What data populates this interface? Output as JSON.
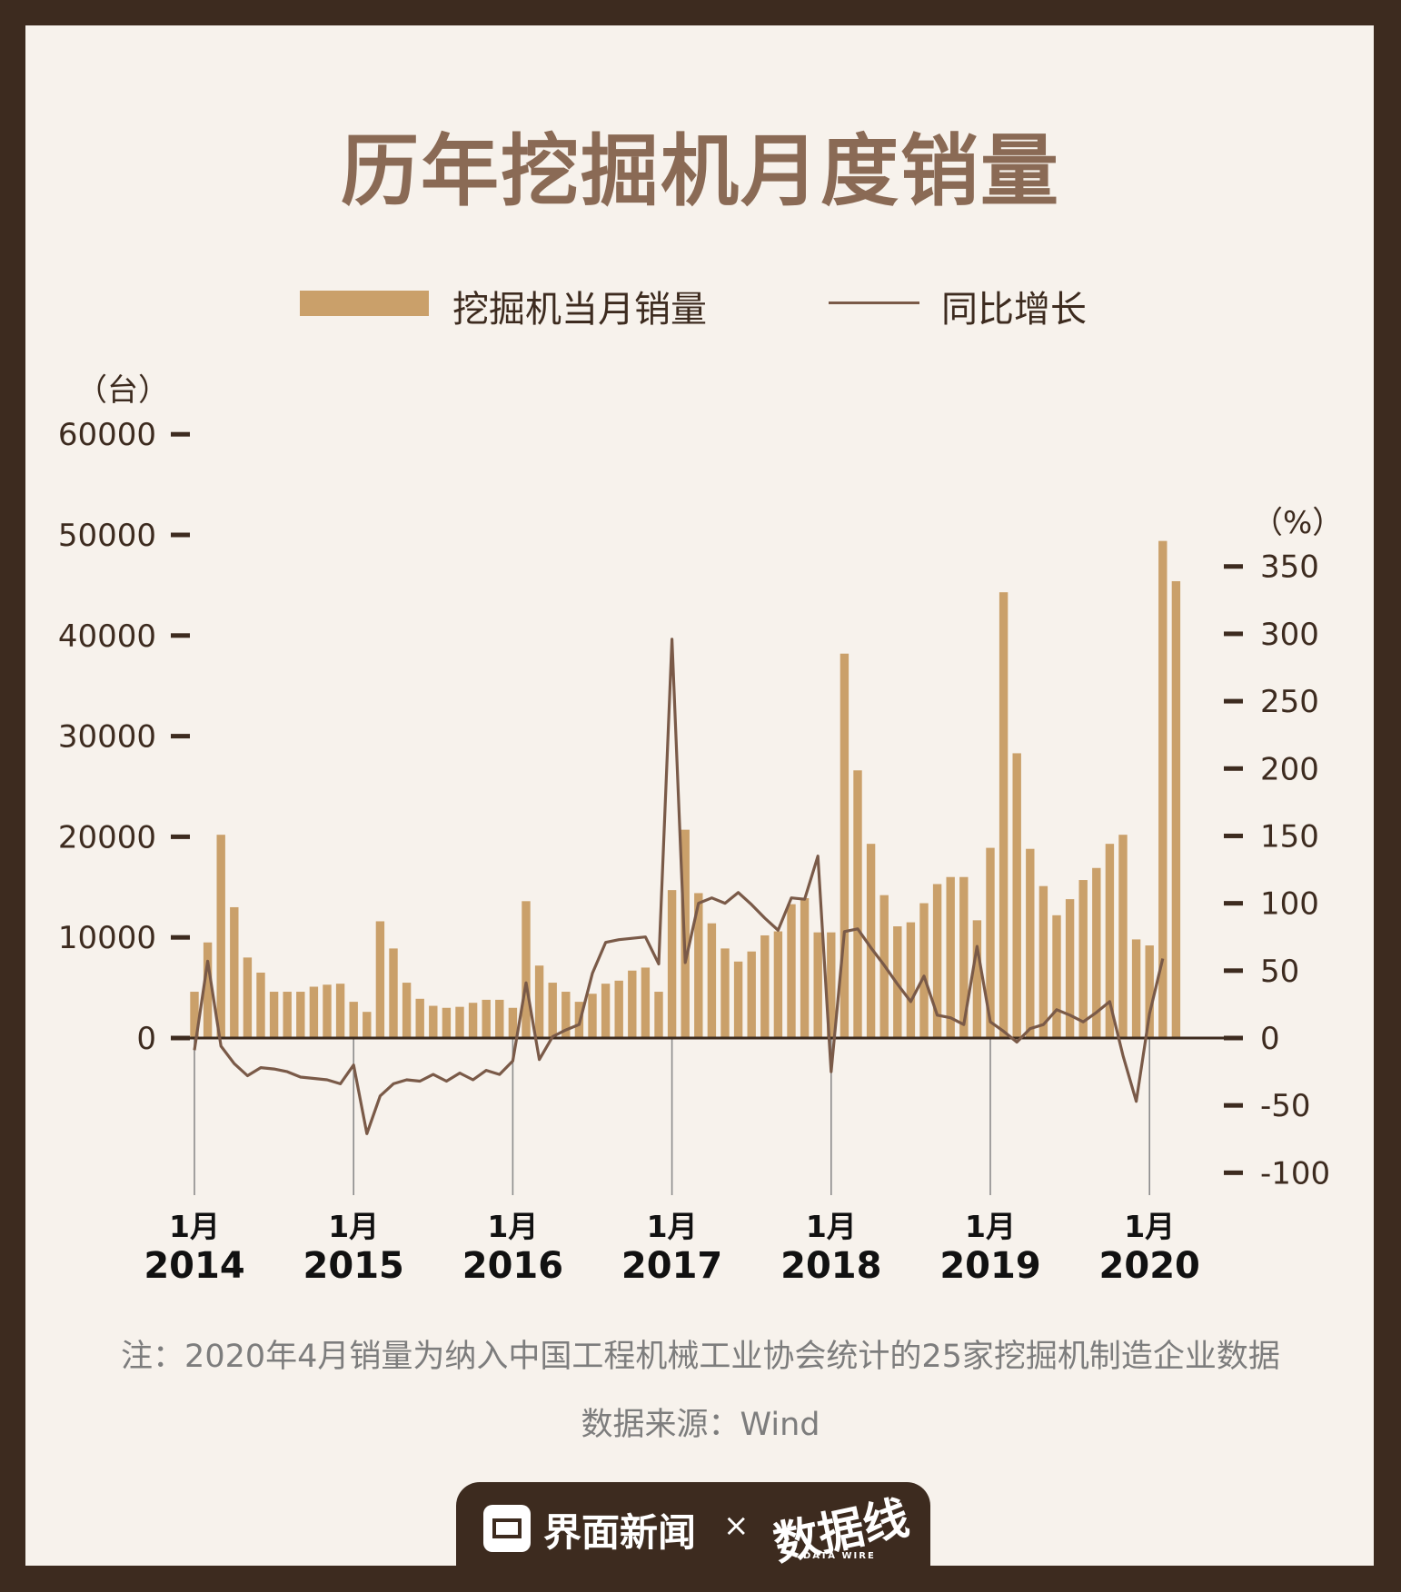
{
  "title": "历年挖掘机月度销量",
  "legend": {
    "bar_label": "挖掘机当月销量",
    "line_label": "同比增长"
  },
  "axes": {
    "left_unit": "（台）",
    "right_unit": "（%）"
  },
  "note": "注：2020年4月销量为纳入中国工程机械工业协会统计的25家挖掘机制造企业数据",
  "source": "数据来源：Wind",
  "footer": {
    "brand": "界面新闻",
    "separator": "×",
    "logo": "数据线",
    "logo_sub": "DATA WIRE"
  },
  "colors": {
    "background": "#f7f2ec",
    "frame": "#3d2b1f",
    "title": "#8a6a55",
    "bars": "#caa06a",
    "line": "#7a5a48"
  },
  "chart_data": {
    "type": "bar",
    "x_tick_labels": [
      {
        "month": "1月",
        "year": "2014"
      },
      {
        "month": "1月",
        "year": "2015"
      },
      {
        "month": "1月",
        "year": "2016"
      },
      {
        "month": "1月",
        "year": "2017"
      },
      {
        "month": "1月",
        "year": "2018"
      },
      {
        "month": "1月",
        "year": "2019"
      },
      {
        "month": "1月",
        "year": "2020"
      }
    ],
    "x_tick_month_index": [
      0,
      12,
      24,
      36,
      48,
      60,
      72
    ],
    "y_left": {
      "ticks": [
        "60000",
        "50000",
        "40000",
        "30000",
        "20000",
        "10000",
        "0"
      ],
      "values": [
        60000,
        50000,
        40000,
        30000,
        20000,
        10000,
        0
      ],
      "ylim": [
        -13000,
        60000
      ]
    },
    "y_right": {
      "ticks": [
        "350",
        "300",
        "250",
        "200",
        "150",
        "100",
        "50",
        "0",
        "-50",
        "-100"
      ],
      "values": [
        350,
        300,
        250,
        200,
        150,
        100,
        50,
        0,
        -50,
        -100
      ],
      "ylim": [
        -100,
        370
      ]
    },
    "series": [
      {
        "name": "挖掘机当月销量",
        "type": "bar",
        "axis": "left",
        "values": [
          4600,
          9500,
          20200,
          13000,
          8000,
          6500,
          4600,
          4600,
          4600,
          5100,
          5300,
          5400,
          3600,
          2600,
          11600,
          8900,
          5500,
          3900,
          3200,
          3000,
          3100,
          3500,
          3800,
          3800,
          3000,
          13600,
          7200,
          5500,
          4600,
          3600,
          4400,
          5400,
          5700,
          6700,
          7000,
          4600,
          14700,
          20700,
          14400,
          11400,
          8900,
          7600,
          8600,
          10200,
          10600,
          13300,
          13900,
          10500,
          10500,
          38200,
          26600,
          19300,
          14200,
          11100,
          11500,
          13400,
          15300,
          16000,
          16000,
          11700,
          18900,
          44300,
          28300,
          18800,
          15100,
          12200,
          13800,
          15700,
          16900,
          19300,
          20200,
          9800,
          9200,
          49400,
          45400
        ]
      },
      {
        "name": "同比增长",
        "type": "line",
        "axis": "right",
        "values": [
          -9,
          57,
          -6,
          -19,
          -28,
          -22,
          -23,
          -25,
          -29,
          -30,
          -31,
          -34,
          -20,
          -71,
          -43,
          -34,
          -31,
          -32,
          -27,
          -32,
          -26,
          -31,
          -24,
          -27,
          -17,
          41,
          -16,
          1,
          6,
          10,
          48,
          71,
          73,
          74,
          75,
          55,
          296,
          56,
          100,
          104,
          100,
          108,
          99,
          89,
          80,
          104,
          103,
          135,
          -25,
          79,
          81,
          67,
          54,
          40,
          27,
          46,
          17,
          15,
          10,
          68,
          12,
          5,
          -3,
          7,
          10,
          21,
          17,
          12,
          19,
          27,
          -13,
          -47,
          18,
          59
        ]
      }
    ],
    "title": "历年挖掘机月度销量",
    "grid": false,
    "legend_position": "top"
  }
}
